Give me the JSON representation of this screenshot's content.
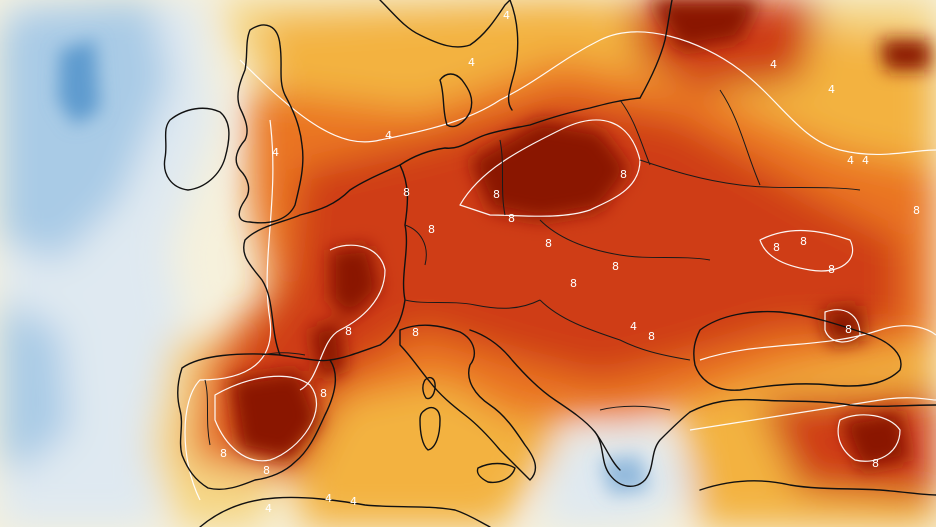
{
  "map": {
    "palette": {
      "deep_cold": "#5f9bcf",
      "cold": "#a9cbe6",
      "cool": "#dfe9f1",
      "neutral": "#f6f1dc",
      "light_warm": "#f5d684",
      "warm": "#f3b240",
      "hot": "#ea7420",
      "very_hot": "#cf3d13",
      "extreme": "#8a1206",
      "contour": "#ffffff",
      "coastline": "#111111"
    },
    "contour_labels": [
      {
        "id": "lbl-4-a",
        "text": "4"
      },
      {
        "id": "lbl-4-b",
        "text": "4"
      },
      {
        "id": "lbl-4-c",
        "text": "4"
      },
      {
        "id": "lbl-4-d",
        "text": "4"
      },
      {
        "id": "lbl-4-e",
        "text": "4"
      },
      {
        "id": "lbl-4-f",
        "text": "4"
      },
      {
        "id": "lbl-4-g",
        "text": "4"
      },
      {
        "id": "lbl-4-h",
        "text": "4"
      },
      {
        "id": "lbl-4-i",
        "text": "4"
      },
      {
        "id": "lbl-4-j",
        "text": "4"
      },
      {
        "id": "lbl-4-k",
        "text": "4"
      },
      {
        "id": "lbl-4-l",
        "text": "4"
      },
      {
        "id": "lbl-8-a",
        "text": "8"
      },
      {
        "id": "lbl-8-b",
        "text": "8"
      },
      {
        "id": "lbl-8-c",
        "text": "8"
      },
      {
        "id": "lbl-8-d",
        "text": "8"
      },
      {
        "id": "lbl-8-e",
        "text": "8"
      },
      {
        "id": "lbl-8-f",
        "text": "8"
      },
      {
        "id": "lbl-8-g",
        "text": "8"
      },
      {
        "id": "lbl-8-h",
        "text": "8"
      },
      {
        "id": "lbl-8-i",
        "text": "8"
      },
      {
        "id": "lbl-8-j",
        "text": "8"
      },
      {
        "id": "lbl-8-k",
        "text": "8"
      },
      {
        "id": "lbl-8-l",
        "text": "8"
      },
      {
        "id": "lbl-8-m",
        "text": "8"
      },
      {
        "id": "lbl-8-n",
        "text": "8"
      },
      {
        "id": "lbl-8-o",
        "text": "8"
      },
      {
        "id": "lbl-8-p",
        "text": "8"
      },
      {
        "id": "lbl-8-q",
        "text": "8"
      },
      {
        "id": "lbl-8-r",
        "text": "8"
      },
      {
        "id": "lbl-8-s",
        "text": "8"
      },
      {
        "id": "lbl-8-t",
        "text": "8"
      }
    ]
  }
}
